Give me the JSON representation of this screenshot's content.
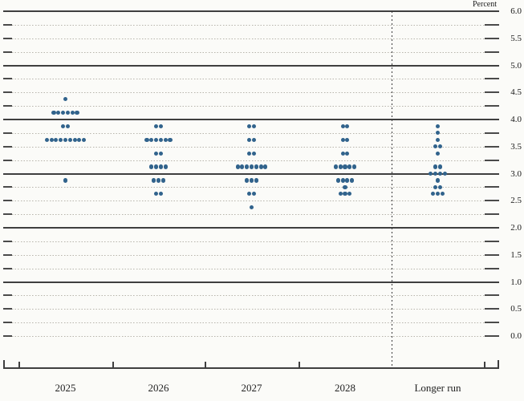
{
  "percent_label": "Percent",
  "y_axis": {
    "tick_labels": [
      "6.0",
      "5.5",
      "5.0",
      "4.5",
      "4.0",
      "3.5",
      "3.0",
      "2.5",
      "2.0",
      "1.5",
      "1.0",
      "0.5",
      "0.0"
    ]
  },
  "colors": {
    "dot": "#31638c",
    "solid_gridline": "#3f3f3f",
    "dashed_gridline": "#b7b4ab",
    "text": "#1a1a1a",
    "background": "#fbfbf8"
  },
  "chart_data": {
    "type": "scatter",
    "subtype": "fomc-dot-plot",
    "ylabel": "Percent",
    "ylim": [
      0.0,
      6.0
    ],
    "y_label_step": 0.5,
    "y_grid_step": 0.25,
    "solid_gridlines_at": [
      1.0,
      2.0,
      3.0,
      4.0,
      5.0,
      6.0
    ],
    "grid": "dashed quarter-point lines with solid lines at integers",
    "legend_position": "none",
    "categories": [
      "2025",
      "2026",
      "2027",
      "2028",
      "Longer run"
    ],
    "separator": "dotted vertical line between 2028 and Longer run",
    "series": [
      {
        "category": "2025",
        "dots": [
          {
            "rate": 4.375,
            "count": 1
          },
          {
            "rate": 4.125,
            "count": 6
          },
          {
            "rate": 3.875,
            "count": 2
          },
          {
            "rate": 3.625,
            "count": 9
          },
          {
            "rate": 2.875,
            "count": 1
          }
        ]
      },
      {
        "category": "2026",
        "dots": [
          {
            "rate": 3.875,
            "count": 2
          },
          {
            "rate": 3.625,
            "count": 6
          },
          {
            "rate": 3.375,
            "count": 2
          },
          {
            "rate": 3.125,
            "count": 4
          },
          {
            "rate": 2.875,
            "count": 3
          },
          {
            "rate": 2.625,
            "count": 2
          }
        ]
      },
      {
        "category": "2027",
        "dots": [
          {
            "rate": 3.875,
            "count": 2
          },
          {
            "rate": 3.625,
            "count": 2
          },
          {
            "rate": 3.375,
            "count": 2
          },
          {
            "rate": 3.125,
            "count": 7
          },
          {
            "rate": 2.875,
            "count": 3
          },
          {
            "rate": 2.625,
            "count": 2
          },
          {
            "rate": 2.375,
            "count": 1
          }
        ]
      },
      {
        "category": "2028",
        "dots": [
          {
            "rate": 3.875,
            "count": 2
          },
          {
            "rate": 3.625,
            "count": 2
          },
          {
            "rate": 3.375,
            "count": 2
          },
          {
            "rate": 3.125,
            "count": 5
          },
          {
            "rate": 2.875,
            "count": 4
          },
          {
            "rate": 2.75,
            "count": 1
          },
          {
            "rate": 2.625,
            "count": 3
          }
        ]
      },
      {
        "category": "Longer run",
        "dots": [
          {
            "rate": 3.875,
            "count": 1
          },
          {
            "rate": 3.75,
            "count": 1
          },
          {
            "rate": 3.625,
            "count": 1
          },
          {
            "rate": 3.5,
            "count": 2
          },
          {
            "rate": 3.375,
            "count": 1
          },
          {
            "rate": 3.125,
            "count": 2
          },
          {
            "rate": 3.0,
            "count": 4
          },
          {
            "rate": 2.875,
            "count": 1
          },
          {
            "rate": 2.75,
            "count": 2
          },
          {
            "rate": 2.625,
            "count": 3
          }
        ]
      }
    ]
  }
}
